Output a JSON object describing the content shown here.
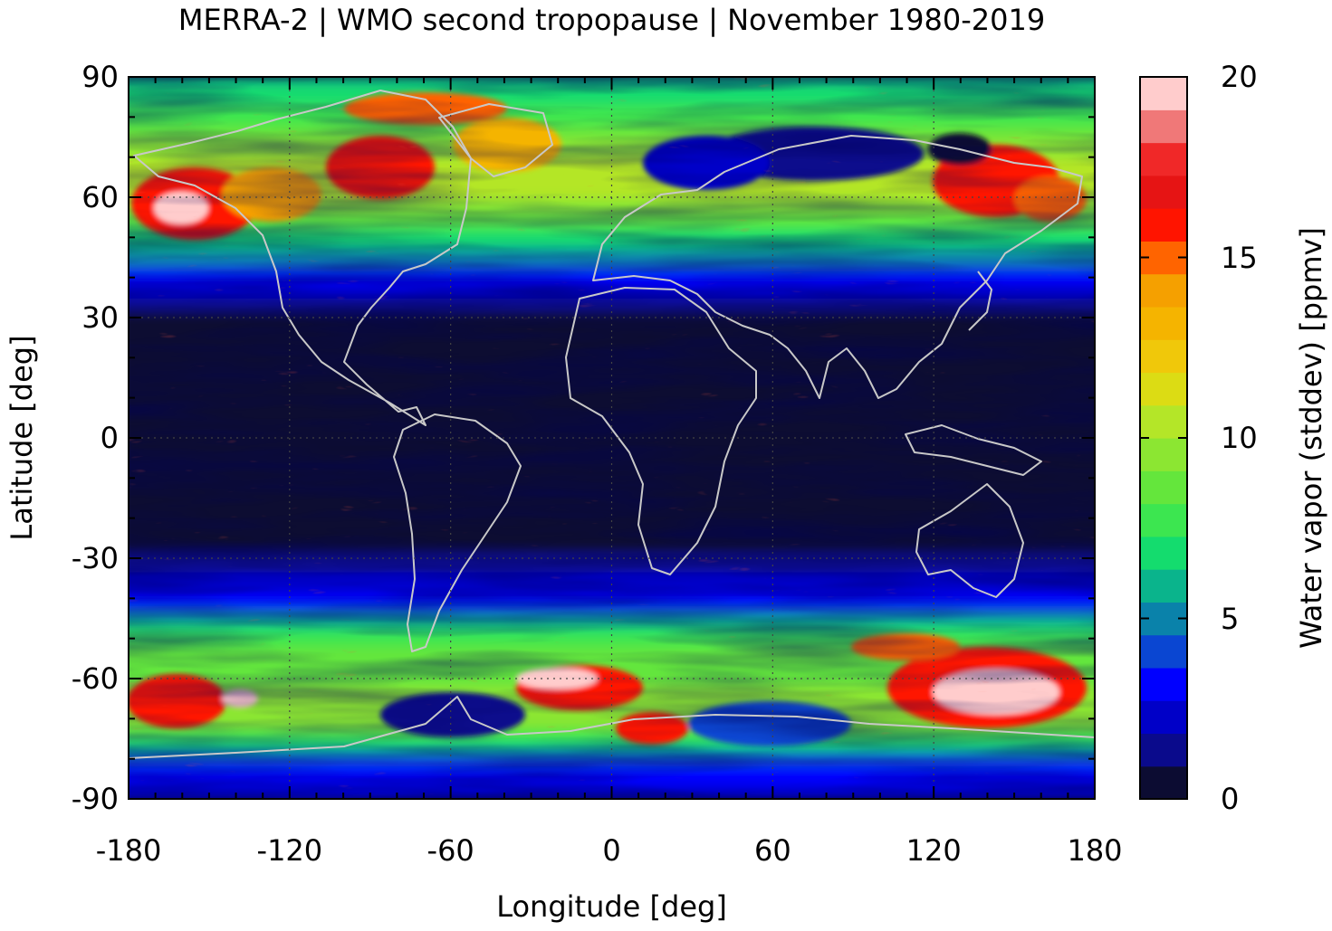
{
  "title": "MERRA-2 | WMO second tropopause | November 1980-2019",
  "chart_data": {
    "type": "heatmap",
    "xlabel": "Longitude [deg]",
    "ylabel": "Latitude [deg]",
    "xlim": [
      -180,
      180
    ],
    "ylim": [
      -90,
      90
    ],
    "xticks": [
      "-180",
      "-120",
      "-60",
      "0",
      "60",
      "120",
      "180"
    ],
    "yticks": [
      "90",
      "60",
      "30",
      "0",
      "-30",
      "-60",
      "-90"
    ],
    "grid": true,
    "colorbar": {
      "label": "Water vapor (stddev) [ppmv]",
      "range": [
        0,
        20
      ],
      "ticks": [
        "0",
        "5",
        "10",
        "15",
        "20"
      ],
      "levels": 20,
      "colors": [
        "#0c0c32",
        "#0a0a8c",
        "#0000c8",
        "#0000ff",
        "#0a46d2",
        "#0a82aa",
        "#0ab48c",
        "#14dc6e",
        "#3ce650",
        "#64e63c",
        "#8ce632",
        "#b4e628",
        "#dcdc14",
        "#f0c80a",
        "#f5b400",
        "#f5a000",
        "#ff6400",
        "#ff1400",
        "#e61414",
        "#f02828",
        "#f07878",
        "#ffcccc"
      ]
    },
    "zonal_profile_stddev_ppmv": [
      {
        "lat": -90,
        "value": 2
      },
      {
        "lat": -80,
        "value": 4
      },
      {
        "lat": -70,
        "value": 10
      },
      {
        "lat": -60,
        "value": 9
      },
      {
        "lat": -50,
        "value": 8
      },
      {
        "lat": -40,
        "value": 3
      },
      {
        "lat": -30,
        "value": 1
      },
      {
        "lat": -20,
        "value": 0.5
      },
      {
        "lat": 0,
        "value": 0.5
      },
      {
        "lat": 20,
        "value": 0.5
      },
      {
        "lat": 30,
        "value": 0.7
      },
      {
        "lat": 40,
        "value": 3
      },
      {
        "lat": 50,
        "value": 7
      },
      {
        "lat": 60,
        "value": 10
      },
      {
        "lat": 70,
        "value": 10
      },
      {
        "lat": 80,
        "value": 8
      },
      {
        "lat": 90,
        "value": 6
      }
    ]
  }
}
